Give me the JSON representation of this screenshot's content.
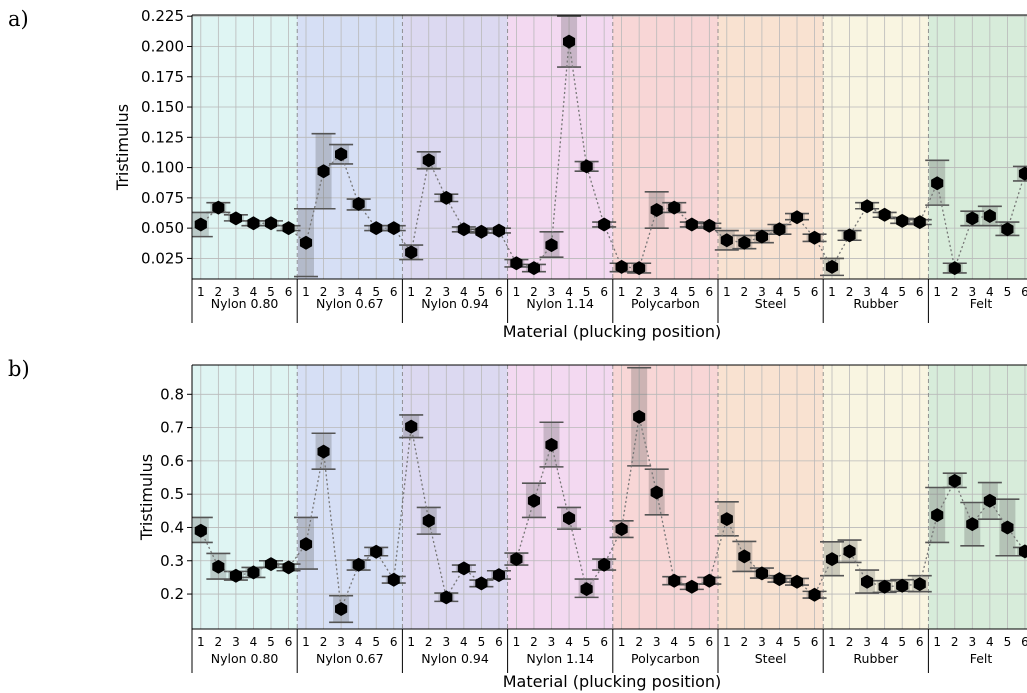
{
  "chart_data": [
    {
      "panel": "a)",
      "type": "scatter",
      "xlabel": "Material (plucking position)",
      "ylabel": "Tristimulus",
      "ylim": [
        0.008,
        0.226
      ],
      "yticks": [
        "0.025",
        "0.050",
        "0.075",
        "0.100",
        "0.125",
        "0.150",
        "0.175",
        "0.200",
        "0.225"
      ],
      "ytick_values": [
        0.025,
        0.05,
        0.075,
        0.1,
        0.125,
        0.15,
        0.175,
        0.2,
        0.225
      ],
      "groups": [
        "Nylon 0.80",
        "Nylon 0.67",
        "Nylon 0.94",
        "Nylon 1.14",
        "Polycarbon",
        "Steel",
        "Rubber",
        "Felt"
      ],
      "positions": [
        "1",
        "2",
        "3",
        "4",
        "5",
        "6"
      ],
      "group_colors": [
        "#dff5f3",
        "#d6dff5",
        "#dcd9f1",
        "#f3d9f1",
        "#f8d6d6",
        "#f9e2d1",
        "#f9f5e1",
        "#d7ecda"
      ],
      "grid": true,
      "points": [
        {
          "y": 0.053,
          "lo": 0.043,
          "hi": 0.063
        },
        {
          "y": 0.067,
          "lo": 0.063,
          "hi": 0.071
        },
        {
          "y": 0.058,
          "lo": 0.056,
          "hi": 0.061
        },
        {
          "y": 0.054,
          "lo": 0.052,
          "hi": 0.056
        },
        {
          "y": 0.054,
          "lo": 0.052,
          "hi": 0.056
        },
        {
          "y": 0.05,
          "lo": 0.048,
          "hi": 0.052
        },
        {
          "y": 0.038,
          "lo": 0.01,
          "hi": 0.066
        },
        {
          "y": 0.097,
          "lo": 0.066,
          "hi": 0.128
        },
        {
          "y": 0.111,
          "lo": 0.103,
          "hi": 0.119
        },
        {
          "y": 0.07,
          "lo": 0.065,
          "hi": 0.074
        },
        {
          "y": 0.05,
          "lo": 0.048,
          "hi": 0.052
        },
        {
          "y": 0.05,
          "lo": 0.048,
          "hi": 0.052
        },
        {
          "y": 0.03,
          "lo": 0.024,
          "hi": 0.036
        },
        {
          "y": 0.106,
          "lo": 0.099,
          "hi": 0.113
        },
        {
          "y": 0.075,
          "lo": 0.072,
          "hi": 0.078
        },
        {
          "y": 0.049,
          "lo": 0.047,
          "hi": 0.051
        },
        {
          "y": 0.047,
          "lo": 0.046,
          "hi": 0.049
        },
        {
          "y": 0.048,
          "lo": 0.046,
          "hi": 0.05
        },
        {
          "y": 0.021,
          "lo": 0.018,
          "hi": 0.024
        },
        {
          "y": 0.017,
          "lo": 0.014,
          "hi": 0.02
        },
        {
          "y": 0.036,
          "lo": 0.026,
          "hi": 0.047
        },
        {
          "y": 0.204,
          "lo": 0.183,
          "hi": 0.225
        },
        {
          "y": 0.101,
          "lo": 0.097,
          "hi": 0.105
        },
        {
          "y": 0.053,
          "lo": 0.051,
          "hi": 0.055
        },
        {
          "y": 0.018,
          "lo": 0.014,
          "hi": 0.021
        },
        {
          "y": 0.017,
          "lo": 0.013,
          "hi": 0.021
        },
        {
          "y": 0.065,
          "lo": 0.05,
          "hi": 0.08
        },
        {
          "y": 0.067,
          "lo": 0.063,
          "hi": 0.071
        },
        {
          "y": 0.053,
          "lo": 0.051,
          "hi": 0.055
        },
        {
          "y": 0.052,
          "lo": 0.05,
          "hi": 0.054
        },
        {
          "y": 0.04,
          "lo": 0.032,
          "hi": 0.048
        },
        {
          "y": 0.038,
          "lo": 0.033,
          "hi": 0.044
        },
        {
          "y": 0.043,
          "lo": 0.038,
          "hi": 0.048
        },
        {
          "y": 0.049,
          "lo": 0.045,
          "hi": 0.053
        },
        {
          "y": 0.059,
          "lo": 0.057,
          "hi": 0.062
        },
        {
          "y": 0.042,
          "lo": 0.039,
          "hi": 0.045
        },
        {
          "y": 0.018,
          "lo": 0.011,
          "hi": 0.025
        },
        {
          "y": 0.044,
          "lo": 0.04,
          "hi": 0.048
        },
        {
          "y": 0.068,
          "lo": 0.066,
          "hi": 0.071
        },
        {
          "y": 0.061,
          "lo": 0.059,
          "hi": 0.063
        },
        {
          "y": 0.056,
          "lo": 0.054,
          "hi": 0.058
        },
        {
          "y": 0.055,
          "lo": 0.053,
          "hi": 0.057
        },
        {
          "y": 0.087,
          "lo": 0.069,
          "hi": 0.106
        },
        {
          "y": 0.017,
          "lo": 0.013,
          "hi": 0.021
        },
        {
          "y": 0.058,
          "lo": 0.052,
          "hi": 0.064
        },
        {
          "y": 0.06,
          "lo": 0.052,
          "hi": 0.068
        },
        {
          "y": 0.049,
          "lo": 0.044,
          "hi": 0.055
        },
        {
          "y": 0.095,
          "lo": 0.089,
          "hi": 0.101
        }
      ]
    },
    {
      "panel": "b)",
      "type": "scatter",
      "xlabel": "Material (plucking position)",
      "ylabel": "Tristimulus",
      "ylim": [
        0.095,
        0.888
      ],
      "yticks": [
        "0.2",
        "0.3",
        "0.4",
        "0.5",
        "0.6",
        "0.7",
        "0.8"
      ],
      "ytick_values": [
        0.2,
        0.3,
        0.4,
        0.5,
        0.6,
        0.7,
        0.8
      ],
      "groups": [
        "Nylon 0.80",
        "Nylon 0.67",
        "Nylon 0.94",
        "Nylon 1.14",
        "Polycarbon",
        "Steel",
        "Rubber",
        "Felt"
      ],
      "positions": [
        "1",
        "2",
        "3",
        "4",
        "5",
        "6"
      ],
      "group_colors": [
        "#dff5f3",
        "#d6dff5",
        "#dcd9f1",
        "#f3d9f1",
        "#f8d6d6",
        "#f9e2d1",
        "#f9f5e1",
        "#d7ecda"
      ],
      "grid": true,
      "points": [
        {
          "y": 0.39,
          "lo": 0.355,
          "hi": 0.43
        },
        {
          "y": 0.282,
          "lo": 0.245,
          "hi": 0.322
        },
        {
          "y": 0.255,
          "lo": 0.242,
          "hi": 0.268
        },
        {
          "y": 0.265,
          "lo": 0.25,
          "hi": 0.28
        },
        {
          "y": 0.29,
          "lo": 0.28,
          "hi": 0.3
        },
        {
          "y": 0.28,
          "lo": 0.27,
          "hi": 0.29
        },
        {
          "y": 0.35,
          "lo": 0.275,
          "hi": 0.43
        },
        {
          "y": 0.628,
          "lo": 0.575,
          "hi": 0.683
        },
        {
          "y": 0.155,
          "lo": 0.115,
          "hi": 0.195
        },
        {
          "y": 0.288,
          "lo": 0.272,
          "hi": 0.302
        },
        {
          "y": 0.327,
          "lo": 0.315,
          "hi": 0.34
        },
        {
          "y": 0.243,
          "lo": 0.233,
          "hi": 0.253
        },
        {
          "y": 0.703,
          "lo": 0.67,
          "hi": 0.738
        },
        {
          "y": 0.42,
          "lo": 0.38,
          "hi": 0.46
        },
        {
          "y": 0.19,
          "lo": 0.178,
          "hi": 0.203
        },
        {
          "y": 0.277,
          "lo": 0.267,
          "hi": 0.287
        },
        {
          "y": 0.232,
          "lo": 0.222,
          "hi": 0.242
        },
        {
          "y": 0.257,
          "lo": 0.245,
          "hi": 0.27
        },
        {
          "y": 0.305,
          "lo": 0.287,
          "hi": 0.323
        },
        {
          "y": 0.48,
          "lo": 0.43,
          "hi": 0.533
        },
        {
          "y": 0.648,
          "lo": 0.582,
          "hi": 0.716
        },
        {
          "y": 0.428,
          "lo": 0.395,
          "hi": 0.46
        },
        {
          "y": 0.215,
          "lo": 0.19,
          "hi": 0.245
        },
        {
          "y": 0.288,
          "lo": 0.272,
          "hi": 0.305
        },
        {
          "y": 0.395,
          "lo": 0.37,
          "hi": 0.42
        },
        {
          "y": 0.732,
          "lo": 0.585,
          "hi": 0.88
        },
        {
          "y": 0.505,
          "lo": 0.438,
          "hi": 0.575
        },
        {
          "y": 0.24,
          "lo": 0.228,
          "hi": 0.252
        },
        {
          "y": 0.222,
          "lo": 0.214,
          "hi": 0.23
        },
        {
          "y": 0.24,
          "lo": 0.23,
          "hi": 0.25
        },
        {
          "y": 0.425,
          "lo": 0.375,
          "hi": 0.477
        },
        {
          "y": 0.313,
          "lo": 0.268,
          "hi": 0.358
        },
        {
          "y": 0.262,
          "lo": 0.248,
          "hi": 0.278
        },
        {
          "y": 0.245,
          "lo": 0.236,
          "hi": 0.255
        },
        {
          "y": 0.237,
          "lo": 0.227,
          "hi": 0.247
        },
        {
          "y": 0.198,
          "lo": 0.188,
          "hi": 0.208
        },
        {
          "y": 0.305,
          "lo": 0.255,
          "hi": 0.357
        },
        {
          "y": 0.328,
          "lo": 0.295,
          "hi": 0.362
        },
        {
          "y": 0.237,
          "lo": 0.203,
          "hi": 0.272
        },
        {
          "y": 0.222,
          "lo": 0.205,
          "hi": 0.24
        },
        {
          "y": 0.225,
          "lo": 0.208,
          "hi": 0.243
        },
        {
          "y": 0.23,
          "lo": 0.207,
          "hi": 0.255
        },
        {
          "y": 0.437,
          "lo": 0.355,
          "hi": 0.52
        },
        {
          "y": 0.54,
          "lo": 0.52,
          "hi": 0.563
        },
        {
          "y": 0.41,
          "lo": 0.345,
          "hi": 0.475
        },
        {
          "y": 0.48,
          "lo": 0.425,
          "hi": 0.535
        },
        {
          "y": 0.4,
          "lo": 0.315,
          "hi": 0.485
        },
        {
          "y": 0.328,
          "lo": 0.315,
          "hi": 0.34
        }
      ]
    }
  ]
}
